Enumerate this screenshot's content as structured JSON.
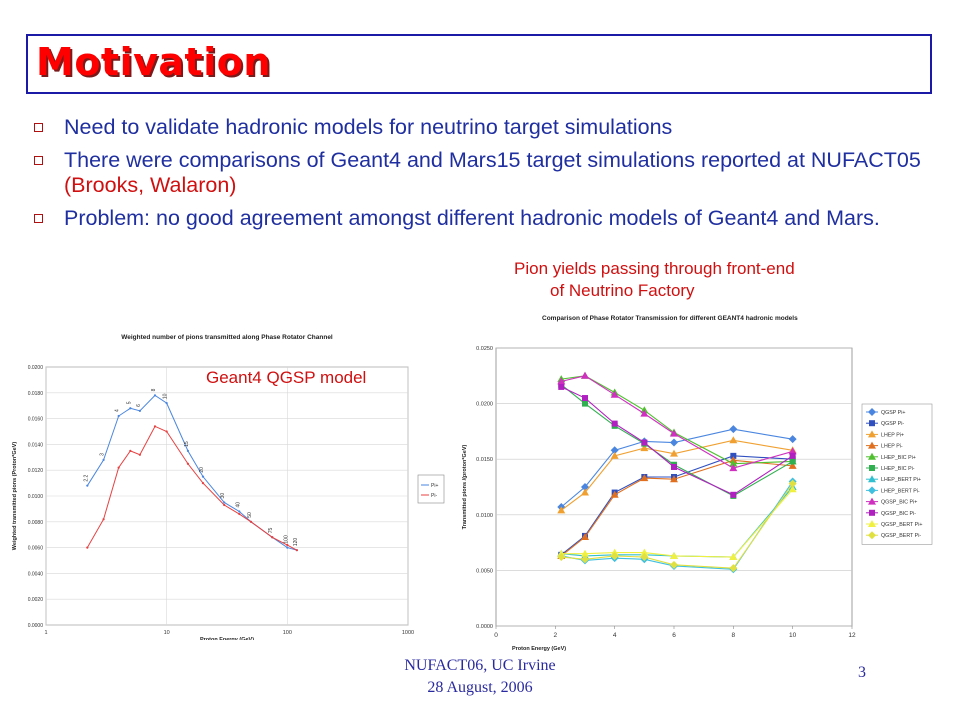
{
  "slide": {
    "title": "Motivation",
    "bullets": [
      {
        "parts": [
          {
            "t": "Need to validate hadronic models for neutrino target simulations",
            "red": false
          }
        ]
      },
      {
        "parts": [
          {
            "t": "There were comparisons of Geant4 and Mars15 target simulations reported at NUFACT05 ",
            "red": false
          },
          {
            "t": "(Brooks, Walaron)",
            "red": true
          }
        ]
      },
      {
        "parts": [
          {
            "t": "Problem: no good agreement amongst different hadronic models of Geant4 and Mars.",
            "red": false
          }
        ]
      }
    ],
    "caption_right_line1": "Pion yields passing through front-end",
    "caption_right_line2": "of Neutrino Factory",
    "caption_left": "Geant4 QGSP model",
    "footer_line1": "NUFACT06, UC Irvine",
    "footer_line2": "28 August, 2006",
    "page_number": "3",
    "colors": {
      "title": "#ff0000",
      "bullet_text": "#1f2fa0",
      "accent_red": "#d01010",
      "frame": "#1a1aa6"
    }
  },
  "chart_data": [
    {
      "type": "line",
      "title": "Weighted number of pions transmitted along Phase Rotator Channel",
      "xlabel": "Proton Energy (GeV)",
      "ylabel": "Weighted transmitted pions (Proton*GeV)",
      "xscale": "log",
      "xlim": [
        1,
        1000
      ],
      "ylim": [
        0,
        0.02
      ],
      "xticks": [
        "1",
        "10",
        "100",
        "1000"
      ],
      "yticks": [
        "0.0000",
        "0.0020",
        "0.0040",
        "0.0060",
        "0.0080",
        "0.0100",
        "0.0120",
        "0.0140",
        "0.0160",
        "0.0180",
        "0.0200"
      ],
      "legend_position": "right",
      "point_labels": [
        "2.2",
        "3",
        "4",
        "5",
        "6",
        "8",
        "10",
        "15",
        "20",
        "30",
        "40",
        "50",
        "75",
        "100",
        "120"
      ],
      "series": [
        {
          "name": "Pi+",
          "color": "#4a86e0",
          "x": [
            2.2,
            3,
            4,
            5,
            6,
            8,
            10,
            15,
            20,
            30,
            40,
            50,
            75,
            100,
            120
          ],
          "y": [
            0.0108,
            0.0128,
            0.0162,
            0.0168,
            0.0166,
            0.0178,
            0.0172,
            0.0135,
            0.0115,
            0.0095,
            0.0088,
            0.008,
            0.0068,
            0.006,
            0.0058
          ]
        },
        {
          "name": "Pi-",
          "color": "#e84040",
          "x": [
            2.2,
            3,
            4,
            5,
            6,
            8,
            10,
            15,
            20,
            30,
            40,
            50,
            75,
            100,
            120
          ],
          "y": [
            0.006,
            0.0082,
            0.0122,
            0.0135,
            0.0132,
            0.0154,
            0.015,
            0.0125,
            0.011,
            0.0093,
            0.0086,
            0.008,
            0.0068,
            0.0062,
            0.0058
          ]
        }
      ]
    },
    {
      "type": "line",
      "title": "Comparison of Phase Rotator Transmission for different GEANT4 hadronic models",
      "xlabel": "Proton Energy (GeV)",
      "ylabel": "Transmitted pions /(proton*GeV)",
      "xlim": [
        0,
        12
      ],
      "ylim": [
        0,
        0.025
      ],
      "xticks": [
        "0",
        "2",
        "4",
        "6",
        "8",
        "10",
        "12"
      ],
      "yticks": [
        "0.0000",
        "0.0050",
        "0.0100",
        "0.0150",
        "0.0200",
        "0.0250"
      ],
      "legend_position": "right",
      "x": [
        2.2,
        3,
        4,
        5,
        6,
        8,
        10
      ],
      "series": [
        {
          "name": "QGSP Pi+",
          "color": "#4a86e0",
          "marker": "diamond",
          "y": [
            0.0107,
            0.0125,
            0.0158,
            0.0166,
            0.0165,
            0.0177,
            0.0168
          ]
        },
        {
          "name": "QGSP Pi-",
          "color": "#3050c0",
          "marker": "square",
          "y": [
            0.0064,
            0.0081,
            0.012,
            0.0134,
            0.0134,
            0.0153,
            0.015
          ]
        },
        {
          "name": "LHEP Pi+",
          "color": "#f0a030",
          "marker": "triangle",
          "y": [
            0.0104,
            0.012,
            0.0153,
            0.016,
            0.0155,
            0.0167,
            0.0158
          ]
        },
        {
          "name": "LHEP Pi-",
          "color": "#e07020",
          "marker": "triangle",
          "y": [
            0.0063,
            0.008,
            0.0118,
            0.0133,
            0.0132,
            0.0149,
            0.0144
          ]
        },
        {
          "name": "LHEP_BIC Pi+",
          "color": "#50c030",
          "marker": "triangle",
          "y": [
            0.0222,
            0.0225,
            0.021,
            0.0194,
            0.0174,
            0.0146,
            0.0148
          ]
        },
        {
          "name": "LHEP_BIC Pi-",
          "color": "#30b050",
          "marker": "square",
          "y": [
            0.0217,
            0.02,
            0.018,
            0.0164,
            0.0145,
            0.0117,
            0.0148
          ]
        },
        {
          "name": "LHEP_BERT Pi+",
          "color": "#30c0d0",
          "marker": "triangle",
          "y": [
            0.0065,
            0.0063,
            0.0064,
            0.0064,
            0.0063,
            0.0062,
            0.0125
          ]
        },
        {
          "name": "LHEP_BERT Pi-",
          "color": "#40c0e0",
          "marker": "diamond",
          "y": [
            0.0063,
            0.0059,
            0.0061,
            0.006,
            0.0054,
            0.0051,
            0.013
          ]
        },
        {
          "name": "QGSP_BIC Pi+",
          "color": "#d030c0",
          "marker": "triangle",
          "y": [
            0.022,
            0.0225,
            0.0208,
            0.0191,
            0.0173,
            0.0142,
            0.0157
          ]
        },
        {
          "name": "QGSP_BIC Pi-",
          "color": "#b020c0",
          "marker": "square",
          "y": [
            0.0215,
            0.0205,
            0.0182,
            0.0165,
            0.0143,
            0.0118,
            0.0153
          ]
        },
        {
          "name": "QGSP_BERT Pi+",
          "color": "#f0f040",
          "marker": "triangle",
          "y": [
            0.0065,
            0.0065,
            0.0066,
            0.0066,
            0.0063,
            0.0062,
            0.0123
          ]
        },
        {
          "name": "QGSP_BERT Pi-",
          "color": "#e0e040",
          "marker": "diamond",
          "y": [
            0.0062,
            0.006,
            0.0063,
            0.0062,
            0.0055,
            0.0052,
            0.0128
          ]
        }
      ]
    }
  ]
}
